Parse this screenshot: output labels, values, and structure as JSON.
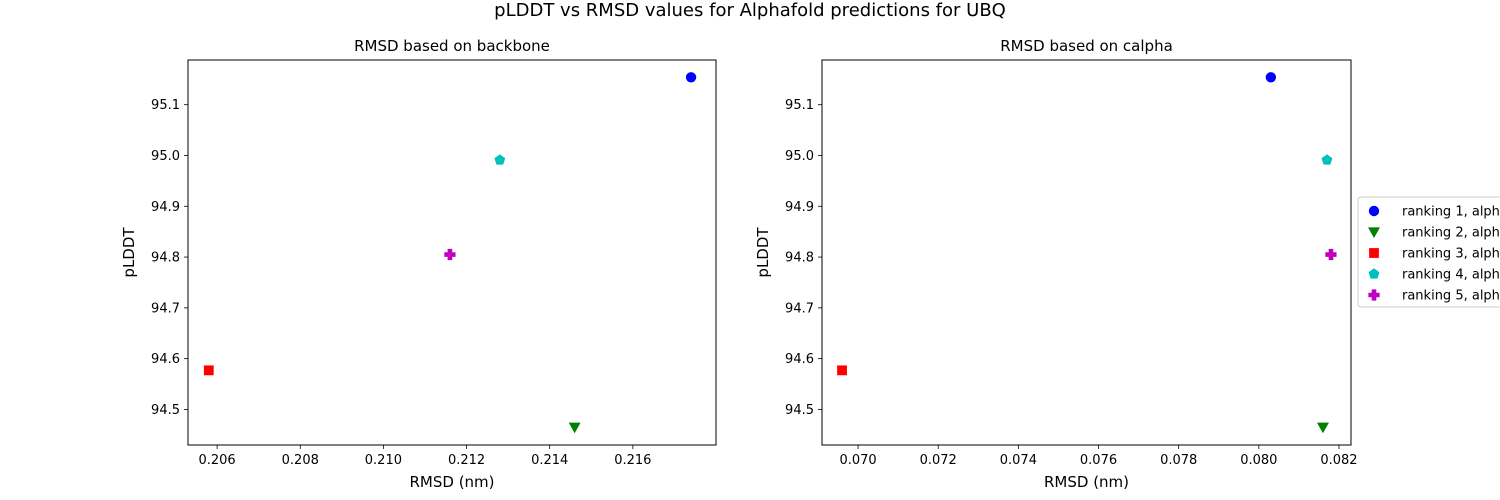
{
  "figure": {
    "suptitle": "pLDDT vs RMSD values for Alphafold predictions for UBQ"
  },
  "chart_data": [
    {
      "type": "scatter",
      "title": "RMSD based on backbone",
      "xlabel": "RMSD (nm)",
      "ylabel": "pLDDT",
      "xlim": [
        0.2053,
        0.218
      ],
      "ylim": [
        94.43,
        95.188
      ],
      "xticks": [
        "0.206",
        "0.208",
        "0.210",
        "0.212",
        "0.214",
        "0.216"
      ],
      "yticks": [
        "94.5",
        "94.6",
        "94.7",
        "94.8",
        "94.9",
        "95.0",
        "95.1"
      ],
      "series": [
        {
          "name": "ranking 1, alph",
          "x": [
            0.2174
          ],
          "y": [
            95.154
          ],
          "color": "#0000ff",
          "marker": "circle"
        },
        {
          "name": "ranking 2, alph",
          "x": [
            0.2146
          ],
          "y": [
            94.465
          ],
          "color": "#008000",
          "marker": "triangle-down"
        },
        {
          "name": "ranking 3, alph",
          "x": [
            0.2058
          ],
          "y": [
            94.577
          ],
          "color": "#ff0000",
          "marker": "square"
        },
        {
          "name": "ranking 4, alph",
          "x": [
            0.2128
          ],
          "y": [
            94.991
          ],
          "color": "#00bfbf",
          "marker": "pentagon"
        },
        {
          "name": "ranking 5, alph",
          "x": [
            0.2116
          ],
          "y": [
            94.805
          ],
          "color": "#bf00bf",
          "marker": "plus"
        }
      ]
    },
    {
      "type": "scatter",
      "title": "RMSD based on calpha",
      "xlabel": "RMSD (nm)",
      "ylabel": "pLDDT",
      "xlim": [
        0.0691,
        0.0823
      ],
      "ylim": [
        94.43,
        95.188
      ],
      "xticks": [
        "0.070",
        "0.072",
        "0.074",
        "0.076",
        "0.078",
        "0.080",
        "0.082"
      ],
      "yticks": [
        "94.5",
        "94.6",
        "94.7",
        "94.8",
        "94.9",
        "95.0",
        "95.1"
      ],
      "legend": "right",
      "series": [
        {
          "name": "ranking 1, alph",
          "x": [
            0.0803
          ],
          "y": [
            95.154
          ],
          "color": "#0000ff",
          "marker": "circle"
        },
        {
          "name": "ranking 2, alph",
          "x": [
            0.0816
          ],
          "y": [
            94.465
          ],
          "color": "#008000",
          "marker": "triangle-down"
        },
        {
          "name": "ranking 3, alph",
          "x": [
            0.0696
          ],
          "y": [
            94.577
          ],
          "color": "#ff0000",
          "marker": "square"
        },
        {
          "name": "ranking 4, alph",
          "x": [
            0.0817
          ],
          "y": [
            94.991
          ],
          "color": "#00bfbf",
          "marker": "pentagon"
        },
        {
          "name": "ranking 5, alph",
          "x": [
            0.0818
          ],
          "y": [
            94.805
          ],
          "color": "#bf00bf",
          "marker": "plus"
        }
      ]
    }
  ]
}
